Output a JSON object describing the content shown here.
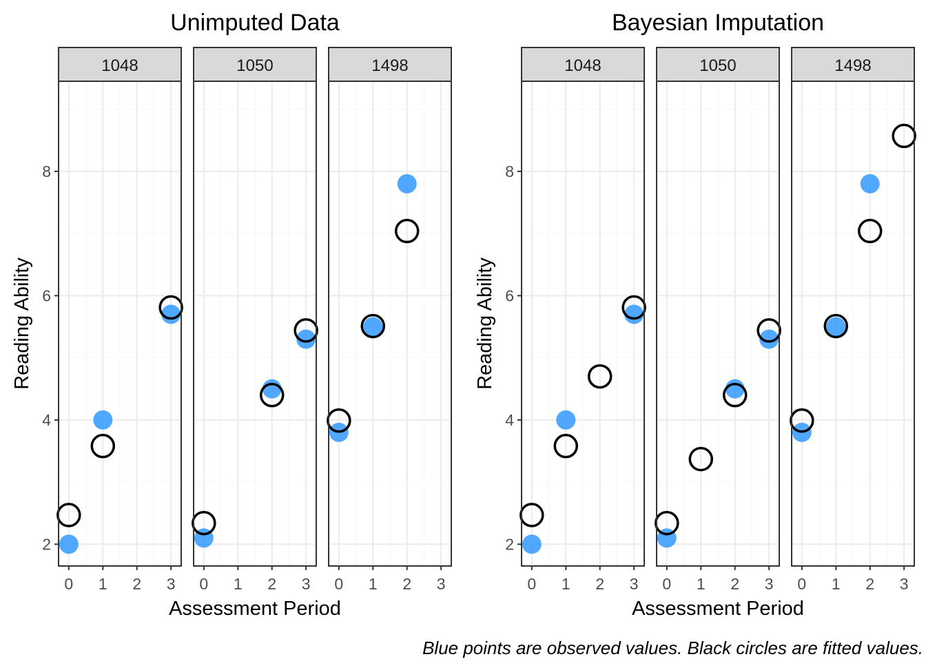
{
  "caption": "Blue points are observed values. Black circles are fitted values.",
  "colors": {
    "observed": "#3399ff",
    "fitted": "#000000",
    "strip_background": "#d9d9d9",
    "panel_border": "#333333",
    "grid": "#ebebeb"
  },
  "chart_data": [
    {
      "type": "scatter",
      "title": "Unimputed Data",
      "xlabel": "Assessment Period",
      "ylabel": "Reading Ability",
      "x_ticks": [
        0,
        1,
        2,
        3
      ],
      "y_ticks": [
        2,
        4,
        6,
        8
      ],
      "xlim": [
        -0.3,
        3.3
      ],
      "ylim": [
        1.65,
        9.45
      ],
      "grid": true,
      "facets": [
        {
          "label": "1048",
          "observed": [
            {
              "x": 0,
              "y": 2.0
            },
            {
              "x": 1,
              "y": 4.0
            },
            {
              "x": 3,
              "y": 5.7
            }
          ],
          "fitted": [
            {
              "x": 0,
              "y": 2.47
            },
            {
              "x": 1,
              "y": 3.58
            },
            {
              "x": 3,
              "y": 5.81
            }
          ]
        },
        {
          "label": "1050",
          "observed": [
            {
              "x": 0,
              "y": 2.1
            },
            {
              "x": 2,
              "y": 4.5
            },
            {
              "x": 3,
              "y": 5.3
            }
          ],
          "fitted": [
            {
              "x": 0,
              "y": 2.34
            },
            {
              "x": 2,
              "y": 4.4
            },
            {
              "x": 3,
              "y": 5.44
            }
          ]
        },
        {
          "label": "1498",
          "observed": [
            {
              "x": 0,
              "y": 3.8
            },
            {
              "x": 1,
              "y": 5.5
            },
            {
              "x": 2,
              "y": 7.8
            }
          ],
          "fitted": [
            {
              "x": 0,
              "y": 3.99
            },
            {
              "x": 1,
              "y": 5.51
            },
            {
              "x": 2,
              "y": 7.04
            }
          ]
        }
      ]
    },
    {
      "type": "scatter",
      "title": "Bayesian Imputation",
      "xlabel": "Assessment Period",
      "ylabel": "Reading Ability",
      "x_ticks": [
        0,
        1,
        2,
        3
      ],
      "y_ticks": [
        2,
        4,
        6,
        8
      ],
      "xlim": [
        -0.3,
        3.3
      ],
      "ylim": [
        1.65,
        9.45
      ],
      "grid": true,
      "facets": [
        {
          "label": "1048",
          "observed": [
            {
              "x": 0,
              "y": 2.0
            },
            {
              "x": 1,
              "y": 4.0
            },
            {
              "x": 3,
              "y": 5.7
            }
          ],
          "fitted": [
            {
              "x": 0,
              "y": 2.47
            },
            {
              "x": 1,
              "y": 3.58
            },
            {
              "x": 2,
              "y": 4.7
            },
            {
              "x": 3,
              "y": 5.81
            }
          ]
        },
        {
          "label": "1050",
          "observed": [
            {
              "x": 0,
              "y": 2.1
            },
            {
              "x": 2,
              "y": 4.5
            },
            {
              "x": 3,
              "y": 5.3
            }
          ],
          "fitted": [
            {
              "x": 0,
              "y": 2.34
            },
            {
              "x": 1,
              "y": 3.37
            },
            {
              "x": 2,
              "y": 4.4
            },
            {
              "x": 3,
              "y": 5.44
            }
          ]
        },
        {
          "label": "1498",
          "observed": [
            {
              "x": 0,
              "y": 3.8
            },
            {
              "x": 1,
              "y": 5.5
            },
            {
              "x": 2,
              "y": 7.8
            }
          ],
          "fitted": [
            {
              "x": 0,
              "y": 3.99
            },
            {
              "x": 1,
              "y": 5.51
            },
            {
              "x": 2,
              "y": 7.04
            },
            {
              "x": 3,
              "y": 8.57
            }
          ]
        }
      ]
    }
  ]
}
